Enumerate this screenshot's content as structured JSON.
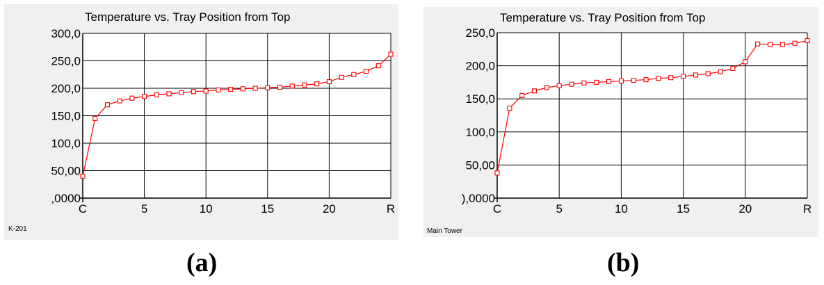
{
  "chart_data": [
    {
      "type": "line",
      "title": "Temperature vs. Tray Position from Top",
      "footnote": "K-201",
      "caption": "(a)",
      "xlim": [
        0,
        25
      ],
      "ylim": [
        0,
        300
      ],
      "x_ticks": [
        {
          "value": 0,
          "label": "C"
        },
        {
          "value": 5,
          "label": "5"
        },
        {
          "value": 10,
          "label": "10"
        },
        {
          "value": 15,
          "label": "15"
        },
        {
          "value": 20,
          "label": "20"
        },
        {
          "value": 25,
          "label": "R"
        }
      ],
      "y_ticks": [
        {
          "value": 0,
          "label": ",0000"
        },
        {
          "value": 50,
          "label": "50,00"
        },
        {
          "value": 100,
          "label": "100,0"
        },
        {
          "value": 150,
          "label": "150,0"
        },
        {
          "value": 200,
          "label": "200,0"
        },
        {
          "value": 250,
          "label": "250,0"
        },
        {
          "value": 300,
          "label": "300,0"
        }
      ],
      "grid": true,
      "series_color": "#ff0000",
      "marker": "square",
      "x": [
        0,
        1,
        2,
        3,
        4,
        5,
        6,
        7,
        8,
        9,
        10,
        11,
        12,
        13,
        14,
        15,
        16,
        17,
        18,
        19,
        20,
        21,
        22,
        23,
        24,
        25
      ],
      "values": [
        40,
        145,
        170,
        177,
        182,
        185,
        188,
        190,
        192,
        194,
        195,
        197,
        198,
        199,
        200,
        201,
        202,
        204,
        206,
        208,
        212,
        220,
        225,
        231,
        241,
        262
      ]
    },
    {
      "type": "line",
      "title": "Temperature vs. Tray Position from Top",
      "footnote": "Main Tower",
      "caption": "(b)",
      "xlim": [
        0,
        25
      ],
      "ylim": [
        0,
        250
      ],
      "x_ticks": [
        {
          "value": 0,
          "label": "C"
        },
        {
          "value": 5,
          "label": "5"
        },
        {
          "value": 10,
          "label": "10"
        },
        {
          "value": 15,
          "label": "15"
        },
        {
          "value": 20,
          "label": "20"
        },
        {
          "value": 25,
          "label": "R"
        }
      ],
      "y_ticks": [
        {
          "value": 0,
          "label": "),0000"
        },
        {
          "value": 50,
          "label": "50,00"
        },
        {
          "value": 100,
          "label": "100,0"
        },
        {
          "value": 150,
          "label": "150,0"
        },
        {
          "value": 200,
          "label": "200,0"
        },
        {
          "value": 250,
          "label": "250,0"
        }
      ],
      "grid": true,
      "series_color": "#ff0000",
      "marker": "square",
      "x": [
        0,
        1,
        2,
        3,
        4,
        5,
        6,
        7,
        8,
        9,
        10,
        11,
        12,
        13,
        14,
        15,
        16,
        17,
        18,
        19,
        20,
        21,
        22,
        23,
        24,
        25
      ],
      "values": [
        38,
        136,
        155,
        162,
        167,
        170,
        172,
        174,
        175,
        176,
        177,
        178,
        179,
        181,
        182,
        184,
        186,
        188,
        191,
        196,
        206,
        233,
        232,
        232,
        234,
        238
      ]
    }
  ]
}
